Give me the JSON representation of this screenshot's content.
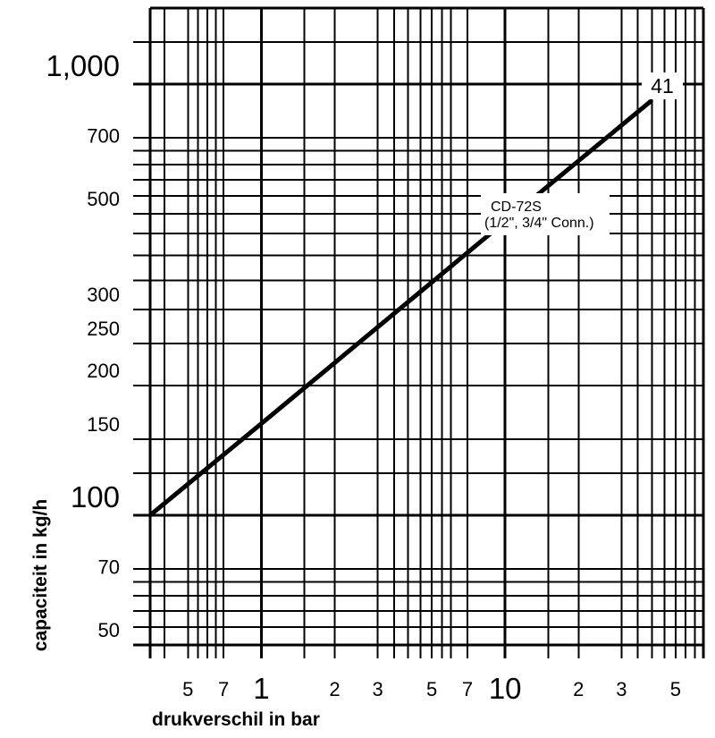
{
  "page": {
    "background": "#ffffff",
    "foreground": "#000000"
  },
  "chart_data": {
    "type": "line",
    "title": "",
    "xlabel": "drukverschil in bar",
    "ylabel": "capaciteit in kg/h",
    "xscale": "log",
    "yscale": "log",
    "xlim": [
      0.35,
      65
    ],
    "ylim": [
      50,
      1500
    ],
    "grid": "log-log graph paper, black on white",
    "legend_position": "none",
    "x_gridlines_major": [
      1,
      10
    ],
    "x_gridlines_minor": [
      0.4,
      0.5,
      0.55,
      0.6,
      0.65,
      0.7,
      1.5,
      2,
      3,
      3.5,
      4,
      4.5,
      5,
      5.5,
      6,
      7,
      15,
      20,
      30,
      35,
      40,
      45,
      50,
      55,
      60
    ],
    "y_gridlines_major": [
      100,
      1000
    ],
    "y_gridlines_minor": [
      55,
      60,
      65,
      70,
      75,
      125,
      150,
      200,
      250,
      300,
      350,
      400,
      450,
      500,
      550,
      600,
      650,
      700,
      750,
      1250
    ],
    "x_ticks": [
      {
        "value": 0.5,
        "label": "5",
        "emphasis": false
      },
      {
        "value": 0.7,
        "label": "7",
        "emphasis": false
      },
      {
        "value": 1,
        "label": "1",
        "emphasis": true
      },
      {
        "value": 2,
        "label": "2",
        "emphasis": false
      },
      {
        "value": 3,
        "label": "3",
        "emphasis": false
      },
      {
        "value": 5,
        "label": "5",
        "emphasis": false
      },
      {
        "value": 7,
        "label": "7",
        "emphasis": false
      },
      {
        "value": 10,
        "label": "10",
        "emphasis": true
      },
      {
        "value": 20,
        "label": "2",
        "emphasis": false
      },
      {
        "value": 30,
        "label": "3",
        "emphasis": false
      },
      {
        "value": 50,
        "label": "5",
        "emphasis": false
      }
    ],
    "y_ticks": [
      {
        "value": 1000,
        "label": "1,000",
        "emphasis": true
      },
      {
        "value": 700,
        "label": "700",
        "emphasis": false
      },
      {
        "value": 500,
        "label": "500",
        "emphasis": false
      },
      {
        "value": 300,
        "label": "300",
        "emphasis": false
      },
      {
        "value": 250,
        "label": "250",
        "emphasis": false
      },
      {
        "value": 200,
        "label": "200",
        "emphasis": false
      },
      {
        "value": 150,
        "label": "150",
        "emphasis": false
      },
      {
        "value": 100,
        "label": "100",
        "emphasis": true
      },
      {
        "value": 70,
        "label": "70",
        "emphasis": false
      },
      {
        "value": 50,
        "label": "50",
        "emphasis": false
      }
    ],
    "series": [
      {
        "name": "CD-72S (1/2\", 3/4\" Conn.)",
        "curve_number": "41",
        "points": [
          [
            0.35,
            100
          ],
          [
            1,
            163
          ],
          [
            10,
            480
          ],
          [
            40,
            917
          ]
        ]
      }
    ],
    "annotation": {
      "line1": "CD-72S",
      "line2": "(1/2\", 3/4\" Conn.)"
    },
    "curve_end_label": "41",
    "colors": {
      "line": "#000000",
      "grid": "#000000",
      "background": "#ffffff"
    }
  }
}
